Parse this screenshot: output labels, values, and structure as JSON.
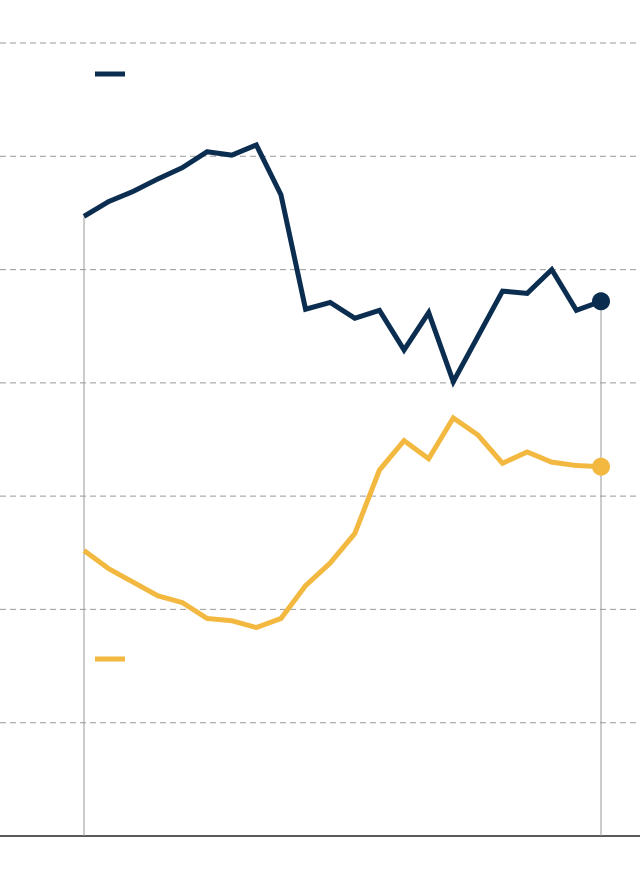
{
  "chart_data": {
    "type": "line",
    "categories": [
      null,
      null,
      null,
      null,
      null,
      null,
      null,
      null,
      null,
      null,
      null,
      null,
      null,
      null,
      null,
      null,
      null,
      null,
      null,
      null,
      null,
      null
    ],
    "series": [
      {
        "color": "#0b2d50",
        "values": [
          5.47,
          5.6,
          5.69,
          5.8,
          5.9,
          6.04,
          6.01,
          6.1,
          5.66,
          4.65,
          4.71,
          4.57,
          4.64,
          4.29,
          4.62,
          4.01,
          4.41,
          4.81,
          4.79,
          5.0,
          4.64,
          4.72
        ]
      },
      {
        "color": "#f2b83f",
        "values": [
          2.52,
          2.36,
          2.24,
          2.12,
          2.06,
          1.92,
          1.9,
          1.84,
          1.92,
          2.21,
          2.41,
          2.67,
          3.23,
          3.49,
          3.33,
          3.69,
          3.54,
          3.29,
          3.39,
          3.3,
          3.27,
          3.26
        ]
      }
    ],
    "ylim": [
      0,
      7
    ],
    "yticks": [
      0,
      1,
      2,
      3,
      4,
      5,
      6,
      7
    ],
    "grid": true
  }
}
